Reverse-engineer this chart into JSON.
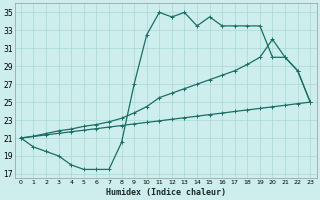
{
  "xlabel": "Humidex (Indice chaleur)",
  "xlim": [
    -0.5,
    23.5
  ],
  "ylim": [
    16.5,
    36.0
  ],
  "xticks": [
    0,
    1,
    2,
    3,
    4,
    5,
    6,
    7,
    8,
    9,
    10,
    11,
    12,
    13,
    14,
    15,
    16,
    17,
    18,
    19,
    20,
    21,
    22,
    23
  ],
  "yticks": [
    17,
    19,
    21,
    23,
    25,
    27,
    29,
    31,
    33,
    35
  ],
  "bg_color": "#ceeeed",
  "grid_color": "#aad8d6",
  "line_color": "#1a6e64",
  "line1_x": [
    0,
    1,
    2,
    3,
    4,
    5,
    6,
    7,
    8,
    9,
    10,
    11,
    12,
    13,
    14,
    15,
    16,
    17,
    18,
    19,
    20,
    21,
    22,
    23
  ],
  "line1_y": [
    21,
    20,
    19.5,
    19,
    18,
    17.5,
    17.5,
    17.5,
    20.5,
    27,
    32.5,
    35,
    34.5,
    35,
    33.5,
    34.5,
    33.5,
    33.5,
    33.5,
    33.5,
    30,
    30,
    28.5,
    25
  ],
  "line2_x": [
    0,
    1,
    2,
    3,
    4,
    5,
    6,
    7,
    8,
    9,
    10,
    11,
    12,
    13,
    14,
    15,
    16,
    17,
    18,
    19,
    20,
    21,
    22,
    23
  ],
  "line2_y": [
    21,
    21.2,
    21.5,
    21.8,
    22.0,
    22.3,
    22.5,
    22.8,
    23.2,
    23.8,
    24.5,
    25.5,
    26.0,
    26.5,
    27.0,
    27.5,
    28.0,
    28.5,
    29.2,
    30.0,
    32.0,
    30.0,
    28.5,
    25
  ],
  "line3_x": [
    0,
    1,
    2,
    3,
    4,
    5,
    6,
    7,
    8,
    9,
    10,
    11,
    12,
    13,
    14,
    15,
    16,
    17,
    18,
    19,
    20,
    21,
    22,
    23
  ],
  "line3_y": [
    21,
    21.17,
    21.35,
    21.52,
    21.7,
    21.87,
    22.04,
    22.22,
    22.39,
    22.57,
    22.74,
    22.91,
    23.09,
    23.26,
    23.43,
    23.61,
    23.78,
    23.96,
    24.13,
    24.3,
    24.48,
    24.65,
    24.83,
    25.0
  ]
}
